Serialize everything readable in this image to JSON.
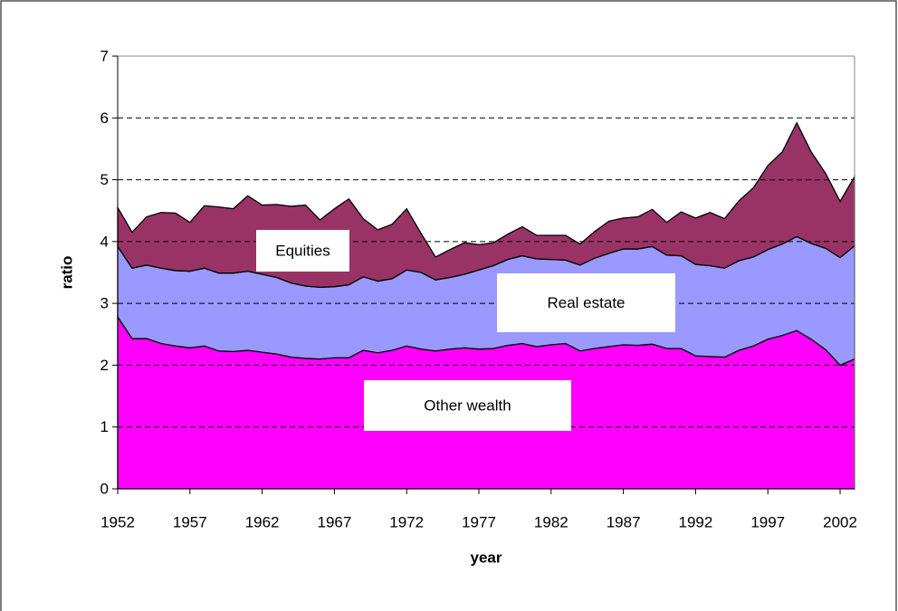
{
  "chart_data": {
    "type": "stacked-area",
    "x_label": "year",
    "y_label": "ratio",
    "x": [
      1952,
      1953,
      1954,
      1955,
      1956,
      1957,
      1958,
      1959,
      1960,
      1961,
      1962,
      1963,
      1964,
      1965,
      1966,
      1967,
      1968,
      1969,
      1970,
      1971,
      1972,
      1973,
      1974,
      1975,
      1976,
      1977,
      1978,
      1979,
      1980,
      1981,
      1982,
      1983,
      1984,
      1985,
      1986,
      1987,
      1988,
      1989,
      1990,
      1991,
      1992,
      1993,
      1994,
      1995,
      1996,
      1997,
      1998,
      1999,
      2000,
      2001,
      2002,
      2003
    ],
    "series": [
      {
        "name": "Other wealth",
        "color": "#ff00ff",
        "values": [
          2.78,
          2.43,
          2.43,
          2.35,
          2.31,
          2.28,
          2.31,
          2.23,
          2.22,
          2.24,
          2.21,
          2.18,
          2.13,
          2.11,
          2.1,
          2.12,
          2.12,
          2.24,
          2.2,
          2.24,
          2.31,
          2.26,
          2.23,
          2.26,
          2.28,
          2.26,
          2.27,
          2.32,
          2.35,
          2.3,
          2.33,
          2.35,
          2.23,
          2.27,
          2.3,
          2.33,
          2.32,
          2.34,
          2.27,
          2.27,
          2.15,
          2.14,
          2.13,
          2.24,
          2.31,
          2.42,
          2.48,
          2.56,
          2.42,
          2.25,
          2.0,
          2.1
        ]
      },
      {
        "name": "Real estate",
        "color": "#9999ff",
        "values": [
          1.14,
          1.14,
          1.19,
          1.22,
          1.22,
          1.24,
          1.26,
          1.26,
          1.27,
          1.28,
          1.26,
          1.24,
          1.2,
          1.17,
          1.16,
          1.15,
          1.18,
          1.19,
          1.16,
          1.16,
          1.23,
          1.24,
          1.15,
          1.16,
          1.19,
          1.28,
          1.34,
          1.39,
          1.42,
          1.42,
          1.38,
          1.35,
          1.39,
          1.46,
          1.51,
          1.55,
          1.56,
          1.58,
          1.51,
          1.5,
          1.48,
          1.47,
          1.44,
          1.45,
          1.44,
          1.45,
          1.48,
          1.52,
          1.55,
          1.64,
          1.74,
          1.83
        ]
      },
      {
        "name": "Equities",
        "color": "#993366",
        "values": [
          0.63,
          0.58,
          0.78,
          0.9,
          0.93,
          0.79,
          1.01,
          1.07,
          1.04,
          1.22,
          1.12,
          1.18,
          1.24,
          1.31,
          1.09,
          1.26,
          1.39,
          0.94,
          0.83,
          0.88,
          0.99,
          0.63,
          0.37,
          0.45,
          0.51,
          0.41,
          0.37,
          0.41,
          0.47,
          0.38,
          0.39,
          0.4,
          0.34,
          0.43,
          0.52,
          0.5,
          0.52,
          0.6,
          0.53,
          0.71,
          0.75,
          0.86,
          0.8,
          0.97,
          1.12,
          1.36,
          1.49,
          1.84,
          1.48,
          1.21,
          0.91,
          1.12
        ]
      }
    ],
    "xlim": [
      1952,
      2003
    ],
    "xticks": [
      1952,
      1957,
      1962,
      1967,
      1972,
      1977,
      1982,
      1987,
      1992,
      1997,
      2002
    ],
    "ylim": [
      0,
      7
    ],
    "yticks": [
      0,
      1,
      2,
      3,
      4,
      5,
      6,
      7
    ],
    "grid": true
  }
}
